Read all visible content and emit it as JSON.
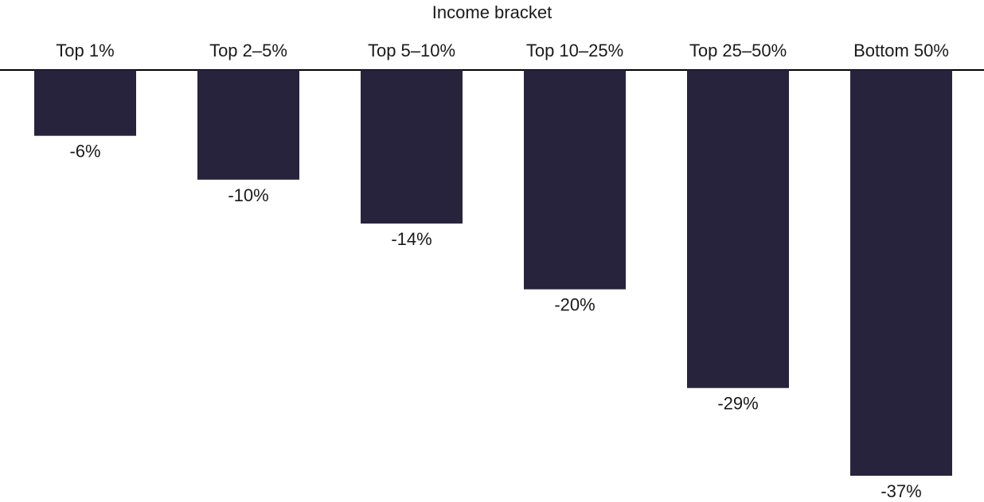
{
  "chart_data": {
    "type": "bar",
    "orientation": "vertical-down",
    "xlabel": "Income bracket",
    "categories": [
      "Top 1%",
      "Top 2–5%",
      "Top 5–10%",
      "Top 10–25%",
      "Top 25–50%",
      "Bottom 50%"
    ],
    "values": [
      -6,
      -10,
      -14,
      -20,
      -29,
      -37
    ],
    "value_labels": [
      "-6%",
      "-10%",
      "-14%",
      "-20%",
      "-29%",
      "-37%"
    ],
    "ylim": [
      -37,
      0
    ],
    "grid": false,
    "legend": "none",
    "colors": {
      "bar": "#28233d",
      "axis_line": "#000000",
      "text": "#1a1a1a"
    }
  }
}
